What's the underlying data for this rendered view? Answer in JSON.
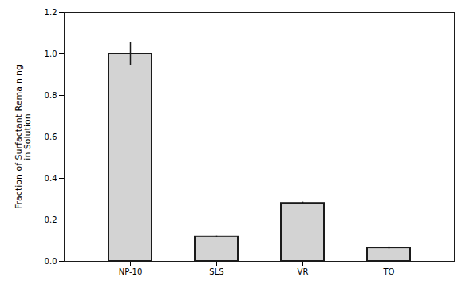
{
  "chart_data": {
    "type": "bar",
    "categories": [
      "NP-10",
      "SLS",
      "VR",
      "TO"
    ],
    "values": [
      1.0,
      0.12,
      0.28,
      0.065
    ],
    "errors": [
      0.055,
      0.004,
      0.006,
      0.005
    ],
    "color": "#d3d3d3",
    "ylabel": "Fraction of Surfactant Remaining\nin Solution",
    "ylim": [
      0,
      1.2
    ],
    "yticks": [
      {
        "value": 0,
        "label": "0.0"
      },
      0.2,
      0.4,
      0.6,
      0.8,
      {
        "value": 1.0,
        "label": "1.0"
      },
      1.2
    ],
    "grid": false
  }
}
